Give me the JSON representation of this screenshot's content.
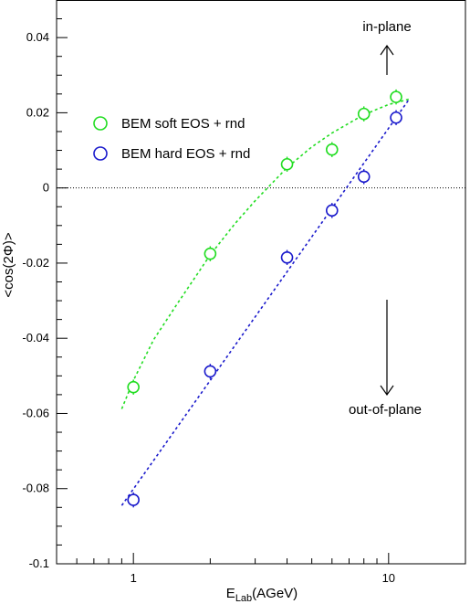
{
  "chart_data": {
    "type": "scatter",
    "title": "",
    "xlabel": "E",
    "xlabel_subscript": "Lab",
    "xlabel_suffix": "(AGeV)",
    "ylabel": "<cos(2Φ)>",
    "xscale": "log",
    "xlim": [
      0.5,
      20
    ],
    "ylim": [
      -0.1,
      0.05
    ],
    "x_tick_labels": [
      "1",
      "10"
    ],
    "y_tick_labels": [
      "0.04",
      "0.02",
      "0",
      "-0.02",
      "-0.04",
      "-0.06",
      "-0.08",
      "-0.1"
    ],
    "y_ticks": [
      0.04,
      0.02,
      0,
      -0.02,
      -0.04,
      -0.06,
      -0.08,
      -0.1
    ],
    "grid": false,
    "zero_line": "dotted",
    "legend_position": "upper-left",
    "series": [
      {
        "name": "BEM soft EOS + rnd",
        "color": "#22dd22",
        "marker": "open-circle",
        "x": [
          1,
          2,
          4,
          6,
          8,
          10.7
        ],
        "y": [
          -0.053,
          -0.0175,
          0.0063,
          0.0102,
          0.0197,
          0.0242
        ],
        "yerr": [
          0.002,
          0.002,
          0.002,
          0.002,
          0.002,
          0.002
        ],
        "fit_curve": {
          "style": "dashed",
          "x": [
            0.9,
            1,
            1.2,
            1.5,
            2,
            2.5,
            3,
            4,
            5,
            6,
            8,
            10,
            12
          ],
          "y": [
            -0.0588,
            -0.0512,
            -0.0404,
            -0.0304,
            -0.0178,
            -0.0095,
            -0.0034,
            0.0054,
            0.0109,
            0.0146,
            0.0195,
            0.0222,
            0.0236
          ]
        }
      },
      {
        "name": "BEM hard EOS + rnd",
        "color": "#1a1acc",
        "marker": "open-circle",
        "x": [
          1,
          2,
          4,
          6,
          8,
          10.7
        ],
        "y": [
          -0.083,
          -0.0488,
          -0.0185,
          -0.006,
          0.003,
          0.0187
        ],
        "yerr": [
          0.002,
          0.002,
          0.002,
          0.002,
          0.002,
          0.002
        ],
        "fit_curve": {
          "style": "dashed",
          "x": [
            0.9,
            12
          ],
          "y": [
            -0.0845,
            0.0235
          ]
        }
      }
    ],
    "annotations": [
      {
        "text": "in-plane",
        "x": 10,
        "y": 0.044,
        "arrow": "up"
      },
      {
        "text": "out-of-plane",
        "x": 10,
        "y": -0.059,
        "arrow": "down"
      }
    ]
  }
}
